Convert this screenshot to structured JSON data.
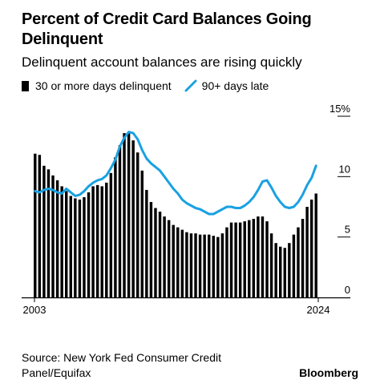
{
  "chart_data": {
    "type": "bar",
    "title": "Percent of Credit Card Balances Going Delinquent",
    "subtitle": "Delinquent account balances are rising quickly",
    "x_tick_labels": [
      "2003",
      "2024"
    ],
    "y_ticks": [
      "0",
      "5",
      "10",
      "15%"
    ],
    "ylim": [
      0,
      15
    ],
    "x_start": 2003,
    "quarters_per_year": 4,
    "grid": true,
    "legend_position": "top",
    "series": [
      {
        "name": "30 or more days delinquent",
        "type": "bar",
        "color": "#000000",
        "values": [
          11.9,
          11.8,
          10.9,
          10.6,
          10.1,
          9.7,
          9.2,
          8.8,
          8.4,
          8.2,
          8.1,
          8.3,
          8.7,
          9.2,
          9.3,
          9.2,
          9.5,
          10.3,
          11.6,
          12.6,
          13.6,
          13.7,
          13.0,
          12.0,
          10.5,
          8.9,
          7.9,
          7.4,
          7.1,
          6.7,
          6.4,
          6.0,
          5.8,
          5.6,
          5.4,
          5.3,
          5.3,
          5.2,
          5.2,
          5.2,
          5.1,
          5.0,
          5.3,
          5.8,
          6.2,
          6.2,
          6.2,
          6.3,
          6.4,
          6.5,
          6.7,
          6.7,
          6.3,
          5.3,
          4.5,
          4.2,
          4.1,
          4.5,
          5.2,
          5.8,
          6.5,
          7.5,
          8.1,
          8.6
        ]
      },
      {
        "name": "90+ days late",
        "type": "line",
        "color": "#1aa1e2",
        "values": [
          8.8,
          8.7,
          8.9,
          9.0,
          8.9,
          8.7,
          8.6,
          9.0,
          8.7,
          8.4,
          8.5,
          8.8,
          9.2,
          9.5,
          9.7,
          9.8,
          10.1,
          10.7,
          11.4,
          12.5,
          13.2,
          13.7,
          13.6,
          13.1,
          12.2,
          11.5,
          11.1,
          10.8,
          10.5,
          10.0,
          9.5,
          9.0,
          8.6,
          8.1,
          7.8,
          7.6,
          7.4,
          7.3,
          7.1,
          6.9,
          6.9,
          7.1,
          7.3,
          7.5,
          7.5,
          7.4,
          7.4,
          7.6,
          7.9,
          8.3,
          8.9,
          9.6,
          9.7,
          9.1,
          8.4,
          7.9,
          7.5,
          7.4,
          7.5,
          7.9,
          8.5,
          9.3,
          9.9,
          10.9
        ]
      }
    ]
  },
  "source": "Source: New York Fed Consumer Credit Panel/Equifax",
  "brand": "Bloomberg"
}
